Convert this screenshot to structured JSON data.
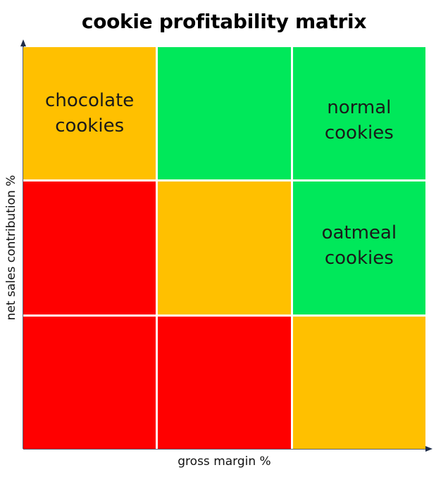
{
  "title": "cookie profitability matrix",
  "xlabel": "gross margin %",
  "ylabel": "net sales contribution %",
  "colors": {
    "red": "#ff0000",
    "amber": "#ffc000",
    "green": "#00e85a",
    "axis": "#1f2d4a"
  },
  "matrix": {
    "rows": [
      [
        {
          "color": "amber",
          "label_line1": "chocolate",
          "label_line2": "cookies"
        },
        {
          "color": "green",
          "label_line1": "",
          "label_line2": ""
        },
        {
          "color": "green",
          "label_line1": "normal",
          "label_line2": "cookies"
        }
      ],
      [
        {
          "color": "red",
          "label_line1": "",
          "label_line2": ""
        },
        {
          "color": "amber",
          "label_line1": "",
          "label_line2": ""
        },
        {
          "color": "green",
          "label_line1": "oatmeal",
          "label_line2": "cookies"
        }
      ],
      [
        {
          "color": "red",
          "label_line1": "",
          "label_line2": ""
        },
        {
          "color": "red",
          "label_line1": "",
          "label_line2": ""
        },
        {
          "color": "amber",
          "label_line1": "",
          "label_line2": ""
        }
      ]
    ]
  }
}
